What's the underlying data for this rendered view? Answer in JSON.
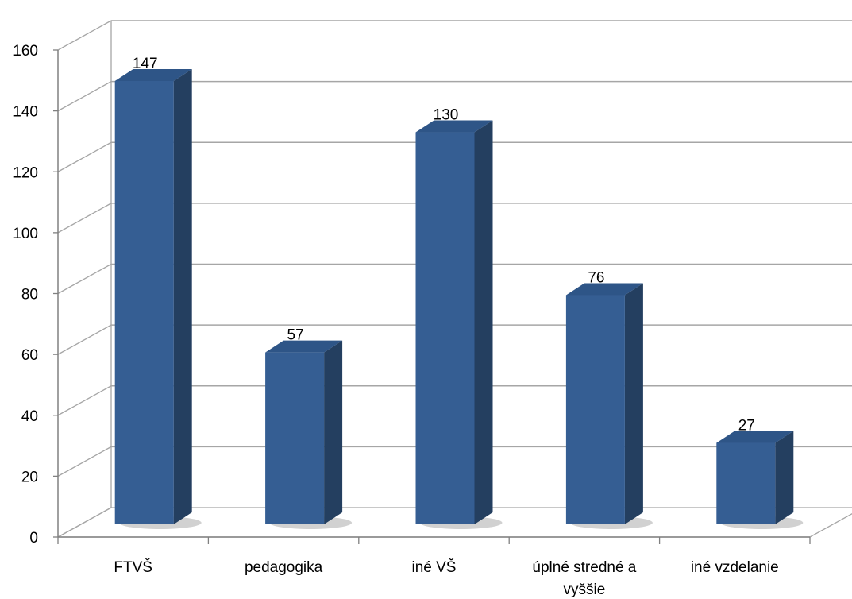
{
  "chart_data": {
    "type": "bar",
    "style": "3d-column",
    "categories": [
      "FTVŠ",
      "pedagogika",
      "iné VŠ",
      "úplné stredné a vyššie",
      "iné vzdelanie"
    ],
    "category_lines": [
      [
        "FTVŠ"
      ],
      [
        "pedagogika"
      ],
      [
        "iné VŠ"
      ],
      [
        "úplné stredné a",
        "vyššie"
      ],
      [
        "iné vzdelanie"
      ]
    ],
    "values": [
      147,
      57,
      130,
      76,
      27
    ],
    "data_labels": [
      "147",
      "57",
      "130",
      "76",
      "27"
    ],
    "y_ticks": [
      0,
      20,
      40,
      60,
      80,
      100,
      120,
      140,
      160
    ],
    "ylim": [
      0,
      160
    ],
    "grid": true,
    "legend": "none",
    "title": "",
    "xlabel": "",
    "ylabel": "",
    "colors": {
      "bar_front": "#355E93",
      "bar_side": "#243F60",
      "bar_top": "#2E5587",
      "grid": "#A6A6A6",
      "axis": "#808080"
    }
  }
}
